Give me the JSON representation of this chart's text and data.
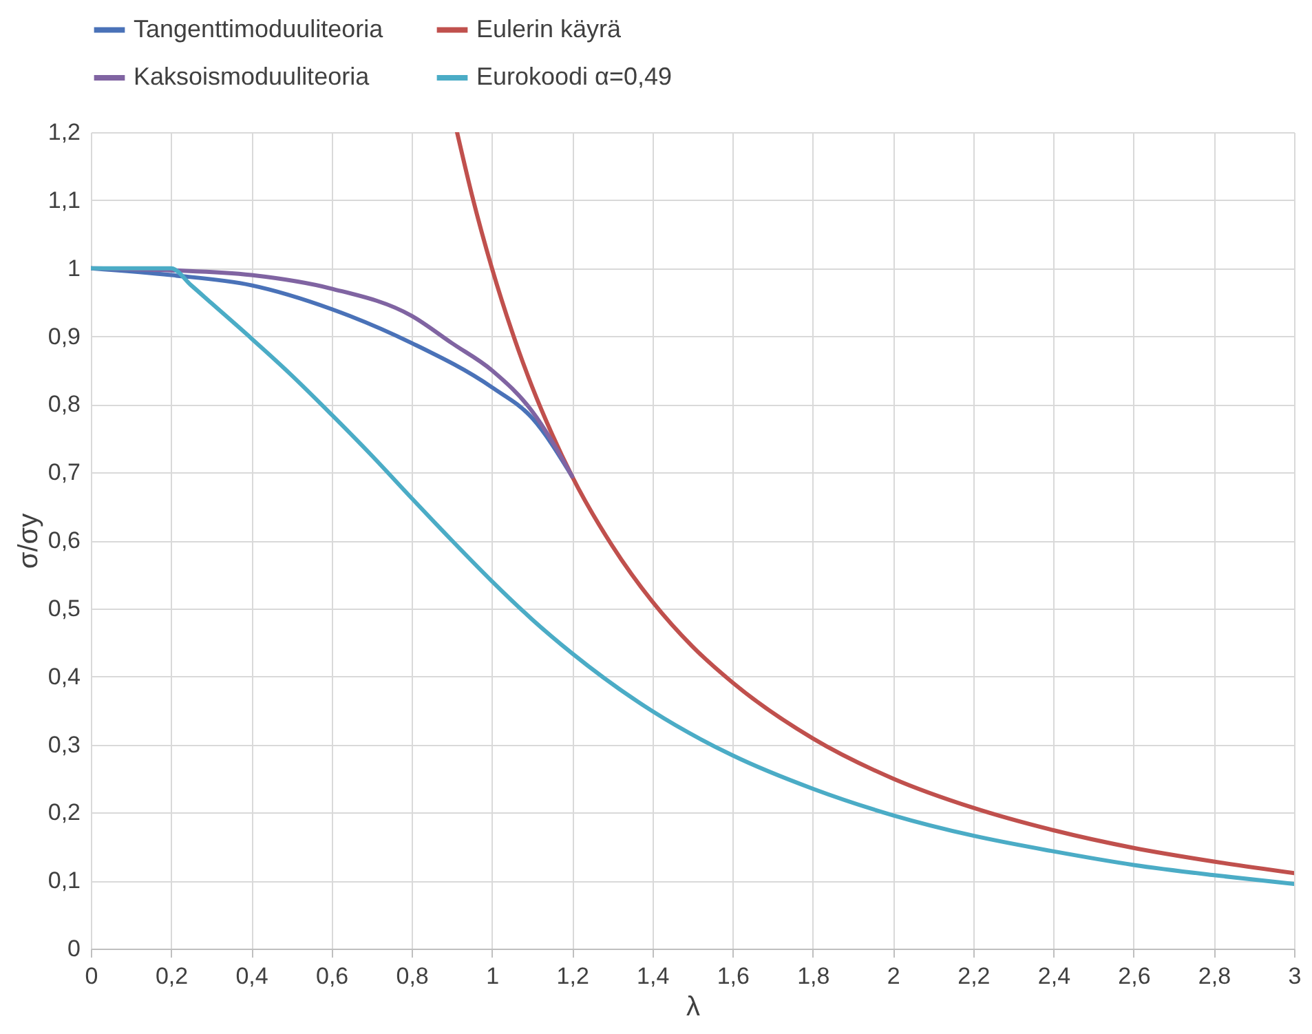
{
  "chart_data": {
    "type": "line",
    "xlabel": "λ",
    "ylabel": "σ/σy",
    "xlim": [
      0,
      3
    ],
    "ylim": [
      0,
      1.2
    ],
    "xticks": [
      0,
      {
        "value": 0.2,
        "label": "0,2"
      },
      {
        "value": 0.4,
        "label": "0,4"
      },
      {
        "value": 0.6,
        "label": "0,6"
      },
      {
        "value": 0.8,
        "label": "0,8"
      },
      1,
      {
        "value": 1.2,
        "label": "1,2"
      },
      {
        "value": 1.4,
        "label": "1,4"
      },
      {
        "value": 1.6,
        "label": "1,6"
      },
      {
        "value": 1.8,
        "label": "1,8"
      },
      2,
      {
        "value": 2.2,
        "label": "2,2"
      },
      {
        "value": 2.4,
        "label": "2,4"
      },
      {
        "value": 2.6,
        "label": "2,6"
      },
      {
        "value": 2.8,
        "label": "2,8"
      },
      3
    ],
    "yticks": [
      0,
      {
        "value": 0.1,
        "label": "0,1"
      },
      {
        "value": 0.2,
        "label": "0,2"
      },
      {
        "value": 0.3,
        "label": "0,3"
      },
      {
        "value": 0.4,
        "label": "0,4"
      },
      {
        "value": 0.5,
        "label": "0,5"
      },
      {
        "value": 0.6,
        "label": "0,6"
      },
      {
        "value": 0.7,
        "label": "0,7"
      },
      {
        "value": 0.8,
        "label": "0,8"
      },
      {
        "value": 0.9,
        "label": "0,9"
      },
      1,
      {
        "value": 1.1,
        "label": "1,1"
      },
      {
        "value": 1.2,
        "label": "1,2"
      }
    ],
    "grid": true,
    "legend": "top",
    "line_style": "solid",
    "series": [
      {
        "name": "Tangenttimoduuliteoria",
        "color": "#4a72b8",
        "x": [
          0,
          0.2,
          0.4,
          0.6,
          0.8,
          1.0,
          1.1,
          1.2
        ],
        "values": [
          1,
          0.99,
          0.975,
          0.94,
          0.89,
          0.825,
          0.78,
          0.694
        ]
      },
      {
        "name": "Eulerin käyrä",
        "color": "#c0504d",
        "x": [
          0.913,
          0.95,
          1.0,
          1.05,
          1.1,
          1.15,
          1.2,
          1.3,
          1.4,
          1.5,
          1.6,
          1.8,
          2.0,
          2.2,
          2.4,
          2.6,
          2.8,
          3.0
        ],
        "values": [
          1.2,
          1.108,
          1,
          0.907,
          0.826,
          0.756,
          0.694,
          0.592,
          0.51,
          0.444,
          0.391,
          0.309,
          0.25,
          0.207,
          0.174,
          0.148,
          0.128,
          0.111
        ]
      },
      {
        "name": "Kaksoismoduuliteoria",
        "color": "#8064a2",
        "x": [
          0,
          0.2,
          0.4,
          0.6,
          0.8,
          0.9,
          1.0,
          1.1,
          1.2
        ],
        "values": [
          1,
          0.997,
          0.99,
          0.97,
          0.93,
          0.89,
          0.85,
          0.79,
          0.694
        ]
      },
      {
        "name": "Eurokoodi α=0,49",
        "color": "#4bacc6",
        "x": [
          0,
          0.2,
          0.25,
          0.3,
          0.4,
          0.5,
          0.6,
          0.7,
          0.8,
          0.9,
          1.0,
          1.1,
          1.2,
          1.4,
          1.6,
          1.8,
          2.0,
          2.2,
          2.4,
          2.6,
          2.8,
          3.0
        ],
        "values": [
          1,
          1,
          0.975,
          0.949,
          0.897,
          0.843,
          0.785,
          0.725,
          0.662,
          0.6,
          0.54,
          0.484,
          0.434,
          0.349,
          0.284,
          0.235,
          0.196,
          0.166,
          0.143,
          0.123,
          0.108,
          0.095
        ]
      }
    ]
  }
}
